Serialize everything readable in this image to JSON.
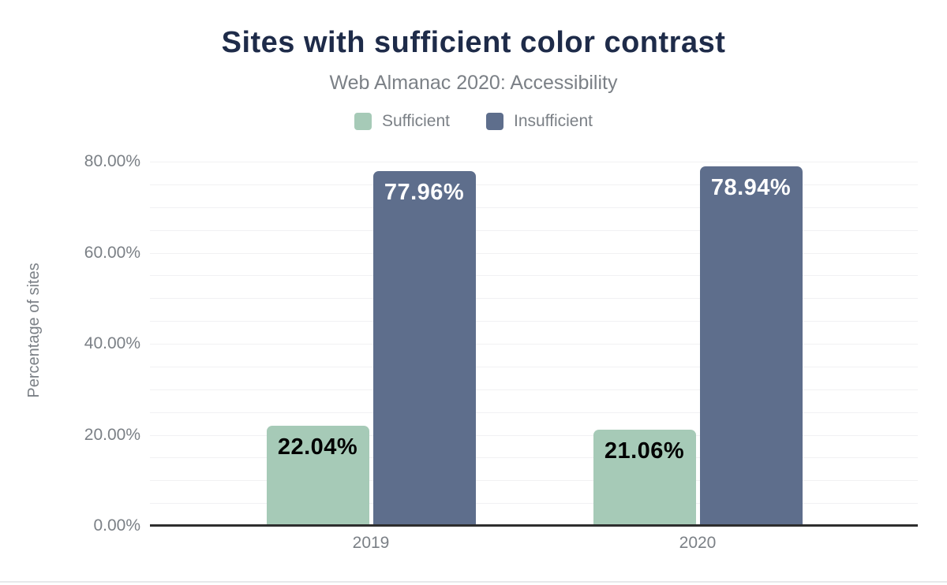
{
  "header": {
    "title": "Sites with sufficient color contrast",
    "subtitle": "Web Almanac 2020: Accessibility"
  },
  "legend": [
    {
      "label": "Sufficient",
      "color": "#a6cab7"
    },
    {
      "label": "Insufficient",
      "color": "#5e6e8c"
    }
  ],
  "chart_data": {
    "type": "bar",
    "title": "Sites with sufficient color contrast",
    "subtitle": "Web Almanac 2020: Accessibility",
    "categories": [
      "2019",
      "2020"
    ],
    "series": [
      {
        "name": "Sufficient",
        "color": "#a6cab7",
        "values": [
          22.04,
          21.06
        ],
        "labels": [
          "22.04%",
          "21.06%"
        ],
        "label_color": "#000000"
      },
      {
        "name": "Insufficient",
        "color": "#5e6e8c",
        "values": [
          77.96,
          78.94
        ],
        "labels": [
          "77.96%",
          "78.94%"
        ],
        "label_color": "#ffffff"
      }
    ],
    "xlabel": "",
    "ylabel": "Percentage of sites",
    "ylim": [
      0,
      80
    ],
    "y_tick_values": [
      0,
      20,
      40,
      60,
      80
    ],
    "y_tick_labels": [
      "0.00%",
      "20.00%",
      "40.00%",
      "60.00%",
      "80.00%"
    ],
    "gridline_step": 5,
    "grid": true,
    "legend_position": "top"
  },
  "colors": {
    "title": "#1e2b49",
    "subtitle": "#7b8086",
    "axis_text": "#7b8086",
    "axis_line": "#2e2e2e",
    "gridline": "#f1f1f3",
    "background": "#ffffff",
    "page_border": "#e7e9eb"
  }
}
